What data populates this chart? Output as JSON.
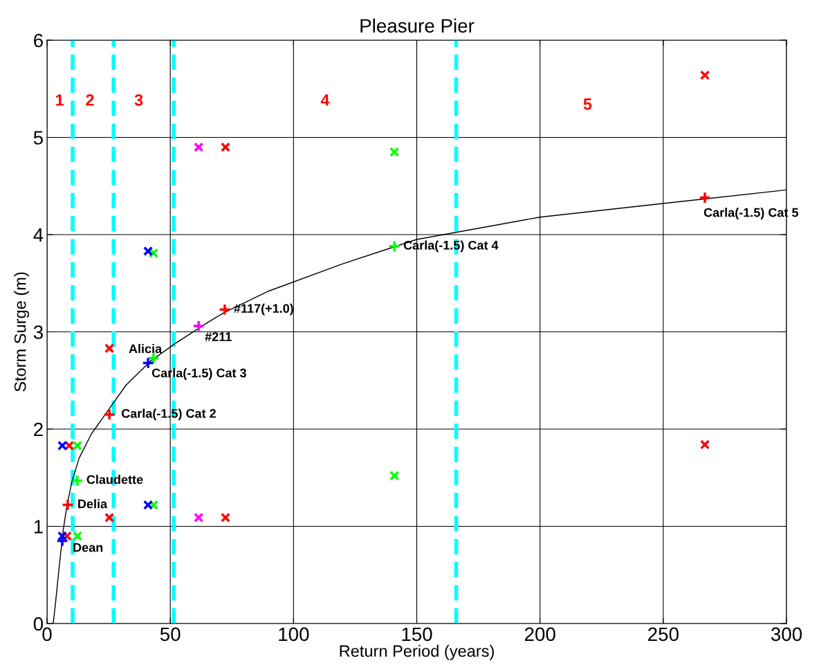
{
  "chart_data": {
    "type": "scatter",
    "title": "Pleasure Pier",
    "xlabel": "Return Period (years)",
    "ylabel": "Storm Surge (m)",
    "xlim": [
      0,
      300
    ],
    "ylim": [
      0,
      6
    ],
    "xticks": [
      0,
      50,
      100,
      150,
      200,
      250,
      300
    ],
    "yticks": [
      0,
      1,
      2,
      3,
      4,
      5,
      6
    ],
    "grid": true,
    "legend": false,
    "series": [
      {
        "type": "line",
        "color": "#000000",
        "marker": "none",
        "line_style": "solid",
        "x": [
          2.5,
          3.4,
          5,
          6.5,
          8,
          10,
          13,
          18,
          25,
          32,
          42,
          52,
          66,
          72,
          90,
          120,
          150,
          200,
          250,
          300
        ],
        "values": [
          0,
          0.2,
          0.6,
          0.95,
          1.2,
          1.45,
          1.7,
          1.95,
          2.2,
          2.45,
          2.7,
          2.88,
          3.11,
          3.2,
          3.42,
          3.7,
          3.95,
          4.18,
          4.32,
          4.46
        ]
      },
      {
        "color": "#ff0000",
        "marker": "plus",
        "x": [
          8.4,
          25.3,
          72.1,
          266.9
        ],
        "values": [
          1.22,
          2.15,
          3.23,
          4.38
        ]
      },
      {
        "color": "#00ff00",
        "marker": "plus",
        "x": [
          12.3,
          43.2,
          140.9
        ],
        "values": [
          1.47,
          2.73,
          3.88
        ]
      },
      {
        "color": "#0000ff",
        "marker": "plus",
        "x": [
          6.2,
          41.0
        ],
        "values": [
          0.85,
          2.68
        ]
      },
      {
        "color": "#ff00ff",
        "marker": "plus",
        "x": [
          61.5
        ],
        "values": [
          3.06
        ]
      },
      {
        "color": "#ff0000",
        "marker": "cross",
        "x": [
          72.4,
          266.9,
          266.9,
          72.4,
          25.3,
          25.3,
          9.0,
          8.1
        ],
        "values": [
          4.9,
          5.64,
          1.84,
          1.09,
          1.09,
          2.83,
          1.83,
          0.9
        ]
      },
      {
        "color": "#00ff00",
        "marker": "cross",
        "x": [
          140.9,
          43.2,
          12.3,
          140.9,
          43.2,
          12.3
        ],
        "values": [
          4.85,
          3.81,
          1.83,
          1.52,
          1.22,
          0.9
        ]
      },
      {
        "color": "#0000ff",
        "marker": "cross",
        "x": [
          41.0,
          6.2,
          41.0,
          6.2
        ],
        "values": [
          3.83,
          1.83,
          1.22,
          0.9
        ]
      },
      {
        "color": "#ff00ff",
        "marker": "cross",
        "x": [
          61.5,
          61.5
        ],
        "values": [
          4.9,
          1.09
        ]
      }
    ],
    "ref_lines": [
      {
        "axis": "x",
        "value": 10.4,
        "color": "#00ffff",
        "line_style": "dashed"
      },
      {
        "axis": "x",
        "value": 27,
        "color": "#00ffff",
        "line_style": "dashed"
      },
      {
        "axis": "x",
        "value": 51.4,
        "color": "#00ffff",
        "line_style": "dashed"
      },
      {
        "axis": "x",
        "value": 166,
        "color": "#00ffff",
        "line_style": "dashed"
      }
    ],
    "annotations": [
      "1",
      "2",
      "3",
      "4",
      "5",
      {
        "text": "Dean",
        "x": 6.2,
        "y": 0.85
      },
      {
        "text": "Delia",
        "x": 8.4,
        "y": 1.22
      },
      {
        "text": "Claudette",
        "x": 12.3,
        "y": 1.47
      },
      {
        "text": "Carla(-1.5) Cat 2",
        "x": 25.3,
        "y": 2.15
      },
      {
        "text": "Alicia",
        "x": 43.2,
        "y": 2.73
      },
      {
        "text": "Carla(-1.5) Cat 3",
        "x": 41.0,
        "y": 2.68
      },
      {
        "text": "#211",
        "x": 61.5,
        "y": 3.06
      },
      {
        "text": "#117(+1.0)",
        "x": 72.1,
        "y": 3.23
      },
      {
        "text": "Carla(-1.5) Cat 4",
        "x": 140.9,
        "y": 3.88
      },
      {
        "text": "Carla(-1.5) Cat 5",
        "x": 266.9,
        "y": 4.38
      }
    ]
  }
}
